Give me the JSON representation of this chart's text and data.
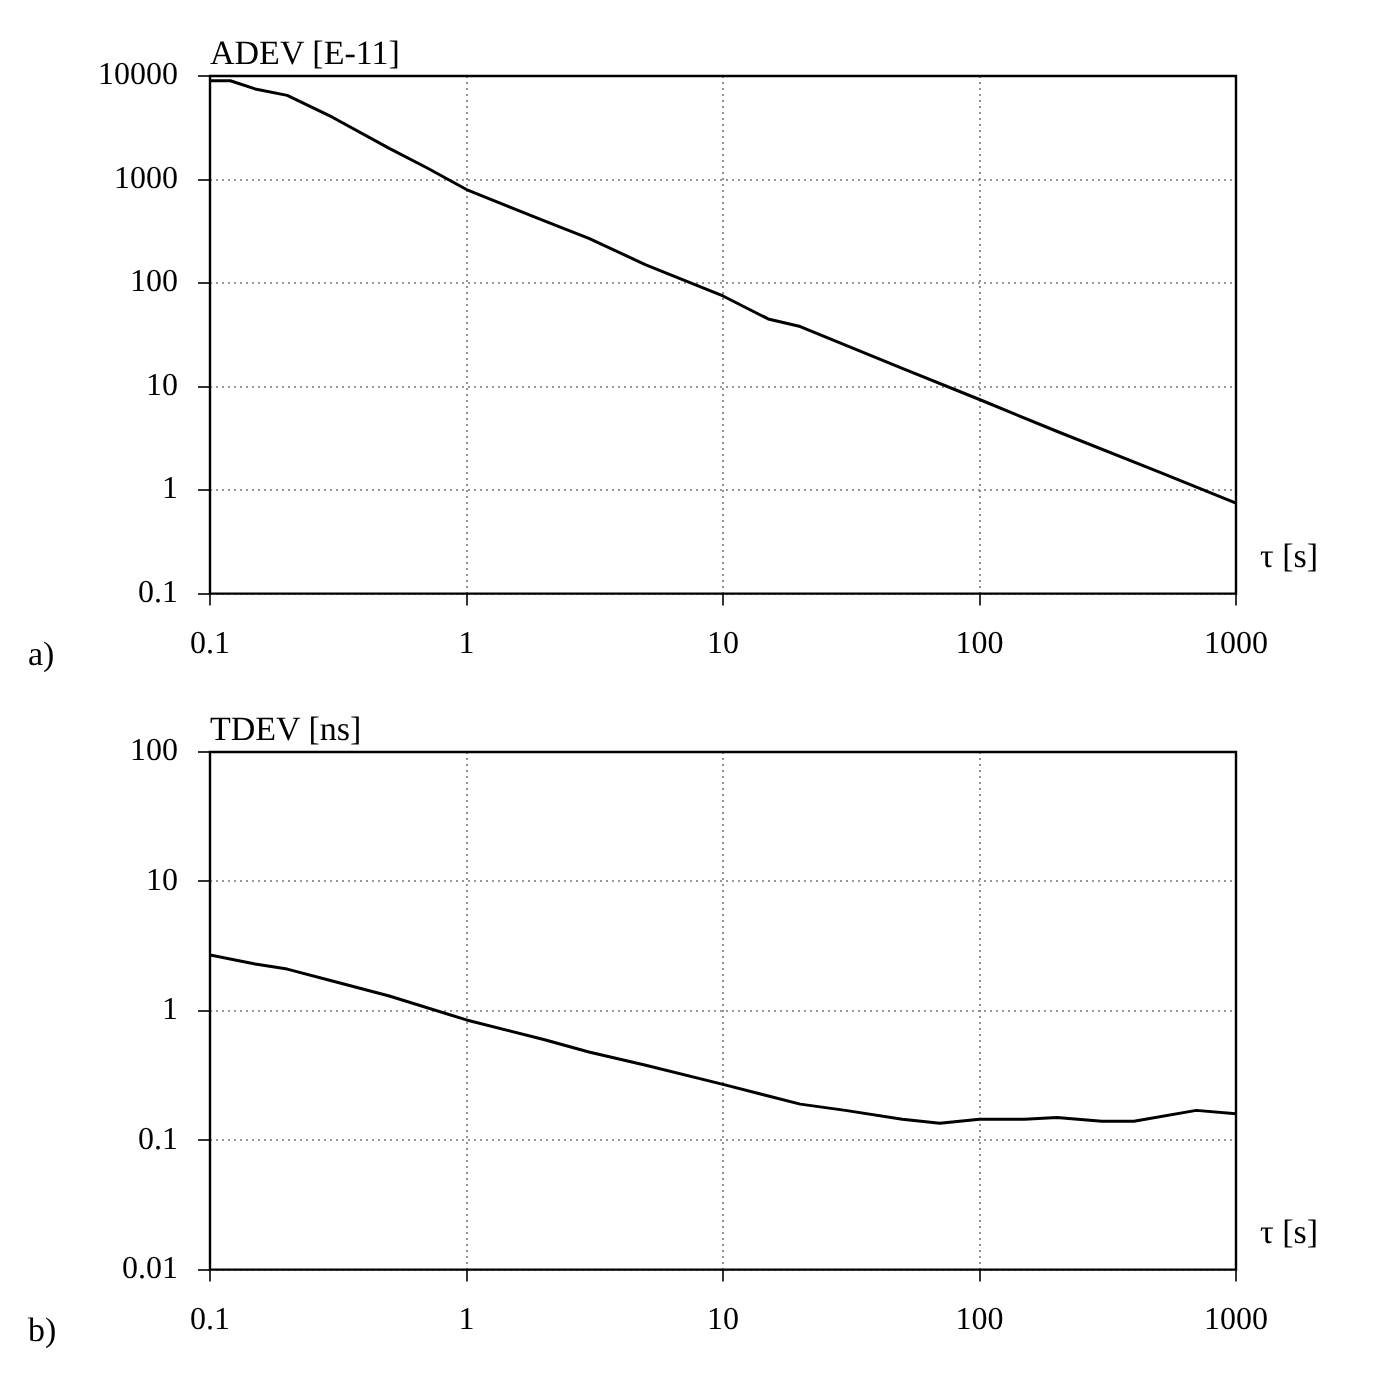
{
  "chart_data": [
    {
      "type": "line",
      "ylabel": "ADEV [E-11]",
      "xlabel": "τ [s]",
      "annotations": [
        "a)"
      ],
      "log": "xy",
      "grid": true,
      "marker": "none",
      "line_style": "solid",
      "xlim": [
        0.1,
        1000
      ],
      "xticks": [
        0.1,
        1,
        10,
        100,
        1000
      ],
      "ylim": [
        0.1,
        10000
      ],
      "yticks": [
        0.1,
        1,
        10,
        100,
        1000,
        10000
      ],
      "series": [
        {
          "color": "#000000",
          "x": [
            0.1,
            0.12,
            0.15,
            0.2,
            0.3,
            0.5,
            0.7,
            1,
            2,
            3,
            5,
            10,
            15,
            20,
            50,
            100,
            200,
            500,
            1000
          ],
          "values": [
            9000,
            9000,
            7500,
            6500,
            4000,
            2000,
            1300,
            800,
            400,
            270,
            150,
            75,
            45,
            38,
            15,
            7.5,
            3.7,
            1.5,
            0.75
          ]
        }
      ]
    },
    {
      "type": "line",
      "ylabel": "TDEV [ns]",
      "xlabel": "τ [s]",
      "annotations": [
        "b)"
      ],
      "log": "xy",
      "grid": true,
      "marker": "none",
      "line_style": "solid",
      "xlim": [
        0.1,
        1000
      ],
      "xticks": [
        0.1,
        1,
        10,
        100,
        1000
      ],
      "ylim": [
        0.01,
        100
      ],
      "yticks": [
        0.01,
        0.1,
        1,
        10,
        100
      ],
      "series": [
        {
          "color": "#000000",
          "x": [
            0.1,
            0.15,
            0.2,
            0.3,
            0.5,
            1,
            2,
            3,
            5,
            10,
            20,
            30,
            50,
            70,
            100,
            150,
            200,
            300,
            400,
            700,
            1000
          ],
          "values": [
            2.7,
            2.3,
            2.1,
            1.7,
            1.3,
            0.85,
            0.6,
            0.48,
            0.38,
            0.27,
            0.19,
            0.17,
            0.145,
            0.135,
            0.145,
            0.145,
            0.15,
            0.14,
            0.14,
            0.17,
            0.16
          ]
        }
      ]
    }
  ]
}
